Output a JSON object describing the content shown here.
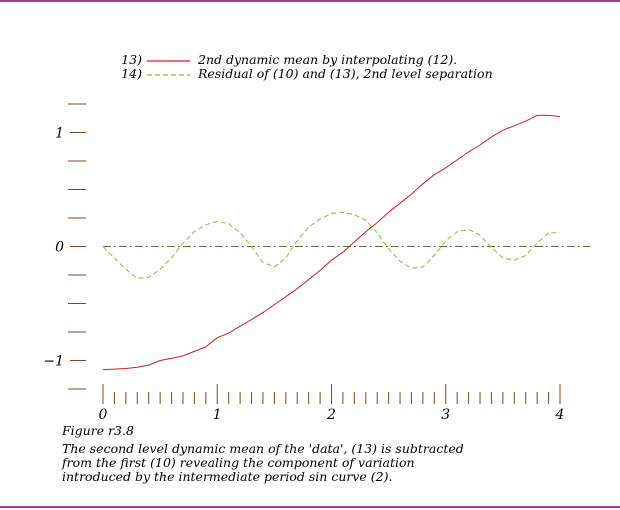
{
  "colors": {
    "border": "#800080",
    "axis": "#8b4513",
    "tick_label": "#000000",
    "series_13": "#d42020",
    "series_14": "#9ab82e",
    "zero_line": "#556b2f"
  },
  "caption": {
    "figure_label": "Figure r3.8",
    "lines": [
      "The second level dynamic mean of the 'data', (13) is subtracted",
      "from the first (10) revealing the component of variation",
      "introduced by the intermediate period sin curve (2)."
    ]
  },
  "chart_data": {
    "type": "line",
    "title": "",
    "xlabel": "",
    "ylabel": "",
    "xlim": [
      0,
      4
    ],
    "ylim": [
      -1.25,
      1.25
    ],
    "x_ticks": [
      0,
      1,
      2,
      3,
      4
    ],
    "x_tick_labels": [
      "0",
      "1",
      "2",
      "3",
      "4"
    ],
    "x_minor_step": 0.1,
    "y_ticks": [
      -1,
      0,
      1
    ],
    "y_tick_labels": [
      "−1",
      "0",
      "1"
    ],
    "y_minor_step": 0.25,
    "grid": false,
    "legend_position": "top",
    "reference_line": {
      "y": 0,
      "style": "dash-dot"
    },
    "series": [
      {
        "number": "13)",
        "name": "2nd dynamic mean by interpolating (12).",
        "style": "solid",
        "x": [
          0.0,
          0.1,
          0.2,
          0.3,
          0.4,
          0.5,
          0.6,
          0.7,
          0.8,
          0.9,
          1.0,
          1.1,
          1.2,
          1.3,
          1.4,
          1.5,
          1.6,
          1.7,
          1.8,
          1.9,
          2.0,
          2.1,
          2.2,
          2.3,
          2.4,
          2.5,
          2.6,
          2.7,
          2.8,
          2.9,
          3.0,
          3.1,
          3.2,
          3.3,
          3.4,
          3.5,
          3.6,
          3.7,
          3.8,
          3.9,
          4.0
        ],
        "y": [
          -1.08,
          -1.075,
          -1.07,
          -1.06,
          -1.04,
          -1.0,
          -0.98,
          -0.96,
          -0.92,
          -0.88,
          -0.8,
          -0.76,
          -0.7,
          -0.64,
          -0.58,
          -0.51,
          -0.44,
          -0.37,
          -0.29,
          -0.21,
          -0.12,
          -0.05,
          0.04,
          0.13,
          0.21,
          0.3,
          0.38,
          0.46,
          0.55,
          0.63,
          0.69,
          0.76,
          0.83,
          0.89,
          0.96,
          1.02,
          1.06,
          1.1,
          1.15,
          1.15,
          1.14
        ]
      },
      {
        "number": "14)",
        "name": "Residual of (10) and (13), 2nd level separation",
        "style": "dashed",
        "x": [
          0.0,
          0.1,
          0.2,
          0.3,
          0.4,
          0.5,
          0.6,
          0.7,
          0.8,
          0.9,
          1.0,
          1.1,
          1.2,
          1.3,
          1.4,
          1.5,
          1.6,
          1.7,
          1.8,
          1.9,
          2.0,
          2.1,
          2.2,
          2.3,
          2.4,
          2.5,
          2.6,
          2.7,
          2.8,
          2.9,
          3.0,
          3.1,
          3.2,
          3.3,
          3.4,
          3.5,
          3.6,
          3.7,
          3.8,
          3.9,
          4.0
        ],
        "y": [
          0.0,
          -0.1,
          -0.2,
          -0.28,
          -0.27,
          -0.2,
          -0.1,
          0.03,
          0.13,
          0.19,
          0.22,
          0.2,
          0.12,
          0.0,
          -0.14,
          -0.18,
          -0.1,
          0.05,
          0.17,
          0.24,
          0.29,
          0.3,
          0.28,
          0.23,
          0.12,
          -0.02,
          -0.13,
          -0.19,
          -0.18,
          -0.08,
          0.05,
          0.13,
          0.15,
          0.1,
          -0.01,
          -0.1,
          -0.12,
          -0.08,
          0.03,
          0.12,
          0.12
        ]
      }
    ]
  }
}
